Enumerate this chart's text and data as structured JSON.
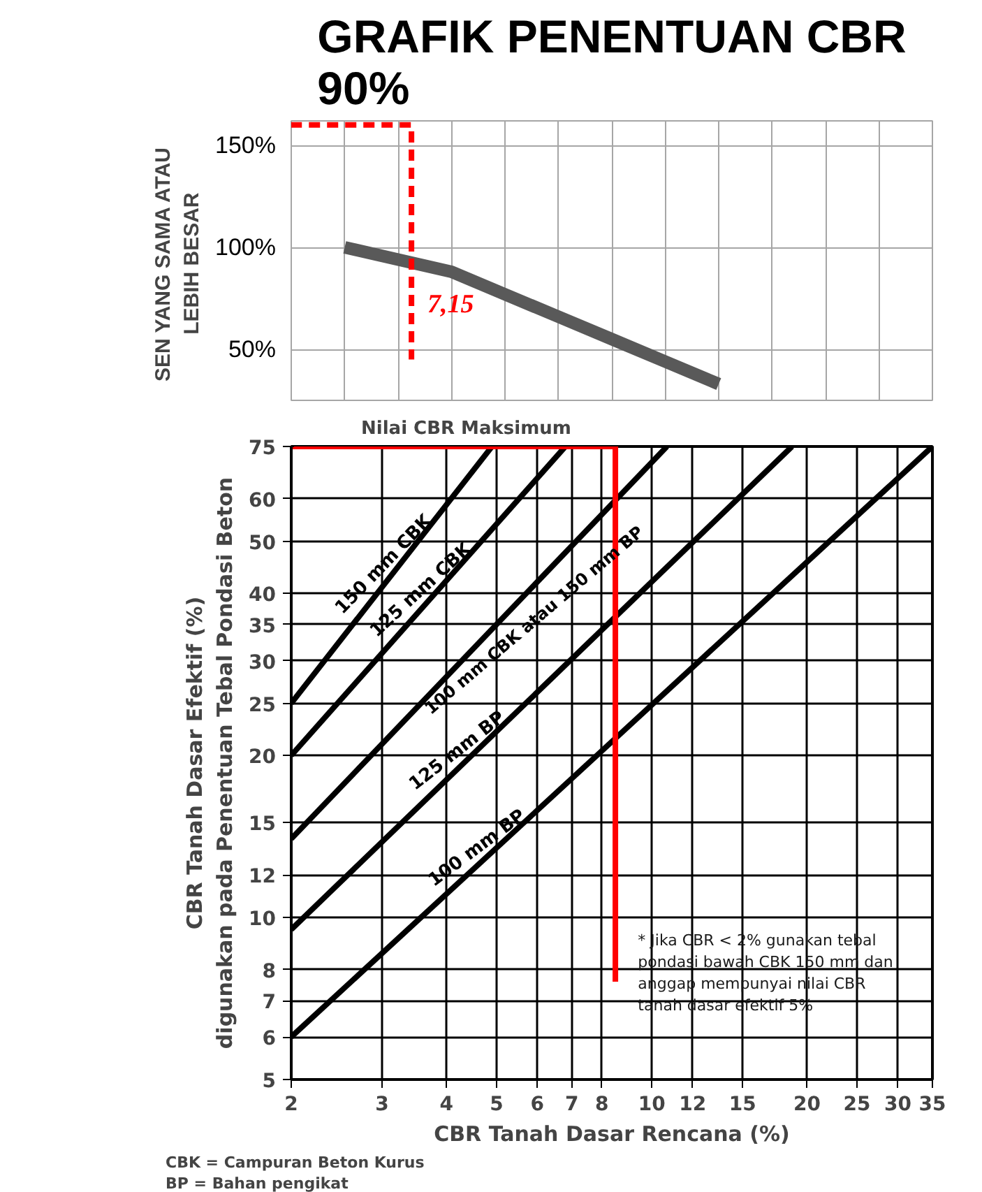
{
  "chart_data": [
    {
      "type": "line",
      "title": "GRAFIK PENENTUAN CBR 90%",
      "ylabel": "SEN  YANG SAMA ATAU\nLEBIH  BESAR",
      "categories": [
        null,
        null,
        null,
        null,
        null,
        null,
        null,
        null,
        null,
        null,
        null,
        null,
        null
      ],
      "series": [
        {
          "color": "#595959",
          "values": [
            null,
            100,
            94,
            88,
            77,
            66,
            55,
            44,
            33,
            null,
            null,
            null,
            null
          ]
        }
      ],
      "ylim": [
        25,
        162
      ],
      "yticks": [
        {
          "value": 50,
          "label": "50%"
        },
        {
          "value": 100,
          "label": "100%"
        },
        {
          "value": 150,
          "label": "150%"
        }
      ],
      "grid": true,
      "annotations": [
        "7,15"
      ]
    },
    {
      "type": "line",
      "xlabel": "CBR Tanah Dasar Rencana (%)",
      "ylabel": "CBR Tanah Dasar Efektif (%)\ndigunakan pada Penentuan Tebal Pondasi Beton",
      "log": "xy",
      "xlim": [
        2,
        35
      ],
      "ylim": [
        5,
        75
      ],
      "xticks": [
        2,
        3,
        4,
        5,
        6,
        7,
        8,
        10,
        12,
        15,
        20,
        25,
        30,
        35
      ],
      "yticks": [
        5,
        6,
        7,
        8,
        10,
        12,
        15,
        20,
        25,
        30,
        35,
        40,
        50,
        60,
        75
      ],
      "grid": true,
      "series": [
        {
          "name": "150 mm CBK",
          "color": "#000000",
          "x": [
            2,
            4.9
          ],
          "values": [
            25,
            75
          ]
        },
        {
          "name": "125 mm CBK",
          "color": "#000000",
          "x": [
            2,
            6.8
          ],
          "values": [
            20,
            75
          ]
        },
        {
          "name": "100 mm CBK atau 150 mm BP",
          "color": "#000000",
          "x": [
            2,
            10.7
          ],
          "values": [
            14,
            75
          ]
        },
        {
          "name": "125 mm  BP",
          "color": "#000000",
          "x": [
            2,
            18.7
          ],
          "values": [
            9.5,
            75
          ]
        },
        {
          "name": "100 mm BP",
          "color": "#000000",
          "x": [
            2,
            35
          ],
          "values": [
            6,
            75
          ]
        },
        {
          "color": "#ff0000",
          "x": [
            2,
            8.5,
            8.5
          ],
          "values": [
            75,
            75,
            7.6
          ]
        }
      ],
      "annotations": [
        "Nilai CBR Maksimum",
        "* Jika CBR < 2% gunakan tebal pondasi bawah CBK 150 mm dan anggap mempunyai nilai CBR tanah dasar efektif 5%",
        "BP = Bahan pengikat",
        "CBK = Campuran Beton Kurus"
      ]
    }
  ]
}
